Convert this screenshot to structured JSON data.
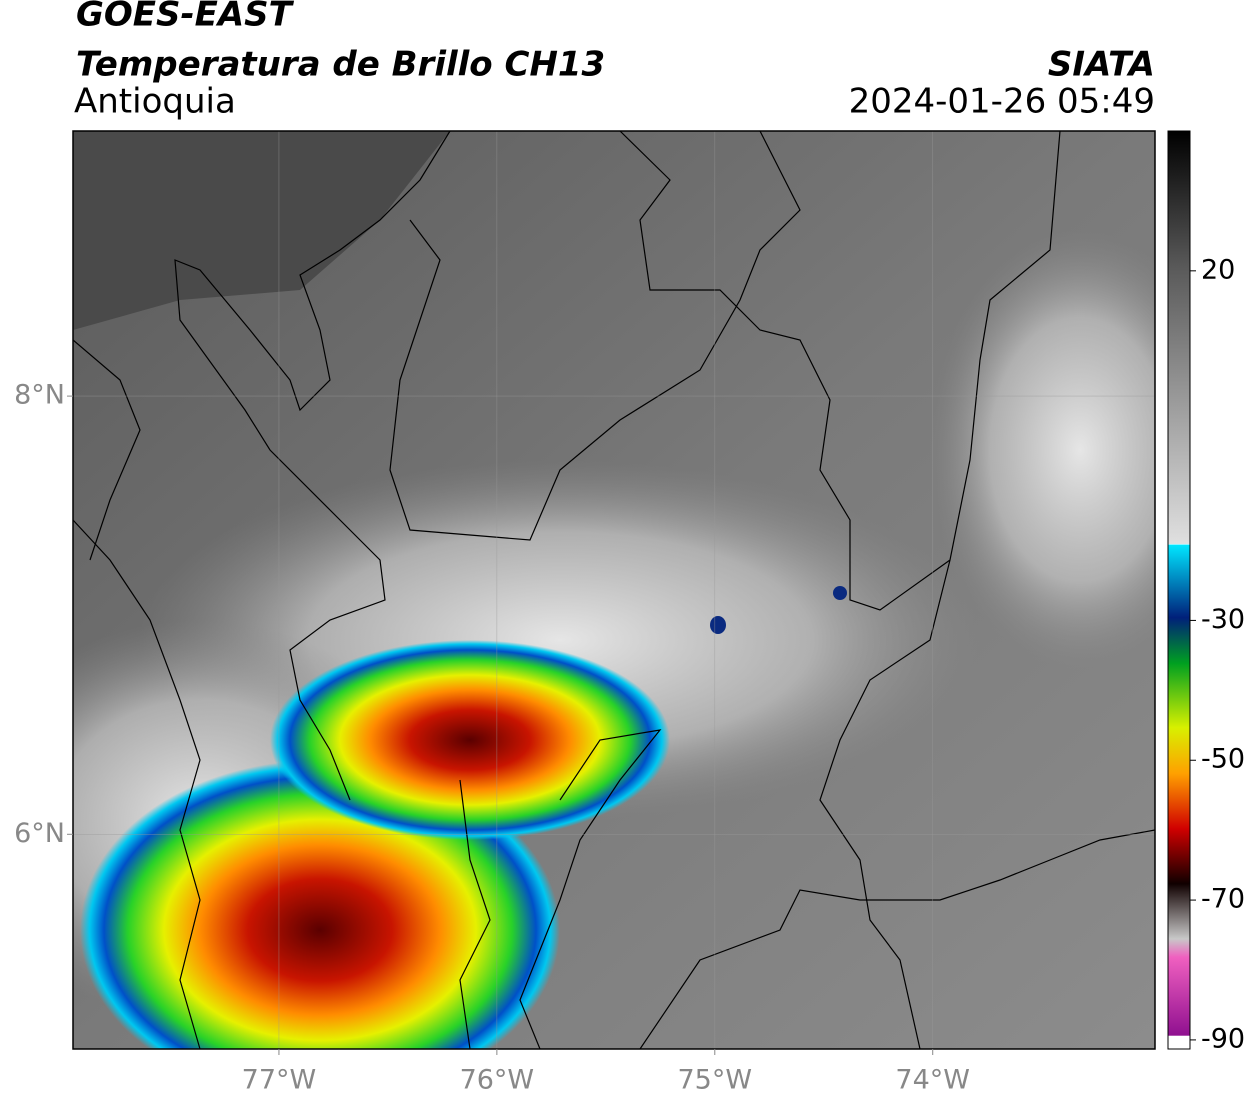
{
  "header": {
    "title": "GOES-EAST",
    "subtitle": "Temperatura de Brillo CH13",
    "region": "Antioquia",
    "source": "SIATA",
    "datetime": "2024-01-26 05:49"
  },
  "map": {
    "xlim": [
      -77.945,
      -72.98
    ],
    "ylim": [
      5.02,
      9.21
    ],
    "xticks": [
      {
        "value": -77,
        "label": "77°W"
      },
      {
        "value": -76,
        "label": "76°W"
      },
      {
        "value": -75,
        "label": "75°W"
      },
      {
        "value": -74,
        "label": "74°W"
      }
    ],
    "yticks": [
      {
        "value": 8,
        "label": "8°N"
      },
      {
        "value": 6,
        "label": "6°N"
      }
    ],
    "grid": true
  },
  "colorbar": {
    "lim": [
      -91.3,
      40
    ],
    "ticks": [
      20,
      -30,
      -50,
      -70,
      -90
    ]
  }
}
